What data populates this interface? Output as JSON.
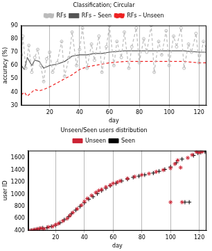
{
  "chart_data": [
    {
      "type": "line",
      "title": "Classification; Circular",
      "x_label": "day",
      "y_label": "accuracy (%)",
      "xlim": [
        1,
        125
      ],
      "xticks": [
        20,
        40,
        60,
        80,
        100,
        120
      ],
      "ylim": [
        30,
        90
      ],
      "yticks": [
        30,
        40,
        50,
        60,
        70,
        80,
        90
      ],
      "grid": "x",
      "legend": "top",
      "series": [
        {
          "name": "RFs",
          "color": "#bbbbbb",
          "marker": "circle",
          "line_style": "dashed",
          "x": [
            1,
            2,
            4,
            6,
            8,
            10,
            12,
            14,
            16,
            18,
            20,
            22,
            25,
            28,
            30,
            33,
            35,
            38,
            40,
            42,
            45,
            48,
            50,
            53,
            55,
            58,
            60,
            63,
            65,
            68,
            70,
            73,
            75,
            78,
            80,
            83,
            85,
            88,
            90,
            93,
            95,
            98,
            100,
            103,
            105,
            108,
            110,
            113,
            115,
            118,
            120,
            123,
            125
          ],
          "values": [
            68,
            82,
            58,
            75,
            55,
            66,
            72,
            60,
            48,
            65,
            70,
            55,
            62,
            78,
            52,
            66,
            85,
            60,
            72,
            88,
            58,
            76,
            64,
            82,
            55,
            74,
            90,
            60,
            78,
            66,
            85,
            58,
            74,
            88,
            62,
            80,
            70,
            90,
            55,
            78,
            68,
            86,
            60,
            82,
            74,
            88,
            58,
            76,
            70,
            84,
            62,
            78,
            72
          ]
        },
        {
          "name": "RFs – Seen",
          "color": "#555555",
          "marker": "none",
          "line_style": "solid",
          "x": [
            1,
            3,
            5,
            8,
            10,
            13,
            16,
            20,
            25,
            30,
            35,
            40,
            45,
            50,
            55,
            60,
            70,
            80,
            90,
            100,
            110,
            120,
            125
          ],
          "values": [
            60,
            57,
            66,
            60,
            64,
            63,
            58,
            60,
            61,
            63,
            67,
            68,
            68,
            69,
            69,
            70,
            71,
            71,
            71,
            71,
            71,
            70,
            70
          ]
        },
        {
          "name": "RFs – Unseen",
          "color": "#ee2222",
          "marker": "none",
          "line_style": "dashed",
          "x": [
            1,
            3,
            5,
            8,
            10,
            13,
            16,
            20,
            25,
            30,
            35,
            40,
            45,
            50,
            55,
            60,
            70,
            80,
            90,
            100,
            110,
            120,
            125
          ],
          "values": [
            38,
            40,
            37,
            40,
            42,
            41,
            42,
            44,
            47,
            50,
            53,
            57,
            59,
            60,
            61,
            62,
            63,
            63,
            63,
            63,
            63,
            62,
            62
          ]
        }
      ]
    },
    {
      "type": "scatter",
      "title": "Unseen/Seen users distribution",
      "x_label": "day",
      "y_label": "user ID",
      "xlim": [
        1,
        125
      ],
      "xticks": [
        20,
        40,
        60,
        80,
        100,
        120
      ],
      "ylim": [
        400,
        1720
      ],
      "yticks": [
        400,
        600,
        800,
        1000,
        1200,
        1400,
        1600
      ],
      "grid": "x",
      "legend": "top",
      "series": [
        {
          "name": "Unseen",
          "color": "#cc2233",
          "marker": "star",
          "x": [
            2,
            4,
            6,
            8,
            10,
            12,
            15,
            18,
            20,
            22,
            25,
            28,
            30,
            32,
            35,
            38,
            40,
            42,
            45,
            48,
            50,
            52,
            55,
            58,
            60,
            63,
            65,
            70,
            75,
            80,
            85,
            90,
            95,
            100,
            100,
            103,
            105,
            108,
            112,
            115,
            118,
            120,
            122,
            107
          ],
          "values": [
            400,
            410,
            420,
            430,
            440,
            430,
            460,
            470,
            500,
            520,
            560,
            600,
            650,
            700,
            760,
            820,
            880,
            930,
            980,
            1030,
            1060,
            1080,
            1120,
            1150,
            1180,
            1200,
            1220,
            1260,
            1290,
            1320,
            1340,
            1370,
            1400,
            1430,
            870,
            1500,
            1560,
            870,
            1600,
            1650,
            1700,
            1690,
            1700,
            1440
          ]
        },
        {
          "name": "Seen",
          "color": "#000000",
          "marker": "plus",
          "x": [
            3,
            5,
            7,
            9,
            11,
            14,
            17,
            20,
            23,
            26,
            29,
            31,
            34,
            37,
            40,
            43,
            46,
            49,
            52,
            55,
            58,
            62,
            66,
            70,
            74,
            78,
            82,
            88,
            92,
            96,
            100,
            104,
            108,
            110,
            113,
            116,
            119,
            121,
            124
          ],
          "values": [
            405,
            415,
            425,
            435,
            445,
            450,
            470,
            490,
            530,
            580,
            630,
            680,
            740,
            800,
            860,
            920,
            960,
            1010,
            1060,
            1100,
            1140,
            1180,
            1220,
            1250,
            1280,
            1300,
            1320,
            1350,
            1380,
            1410,
            1450,
            1520,
            1580,
            870,
            870,
            1640,
            1680,
            1690,
            1700
          ]
        }
      ]
    }
  ]
}
